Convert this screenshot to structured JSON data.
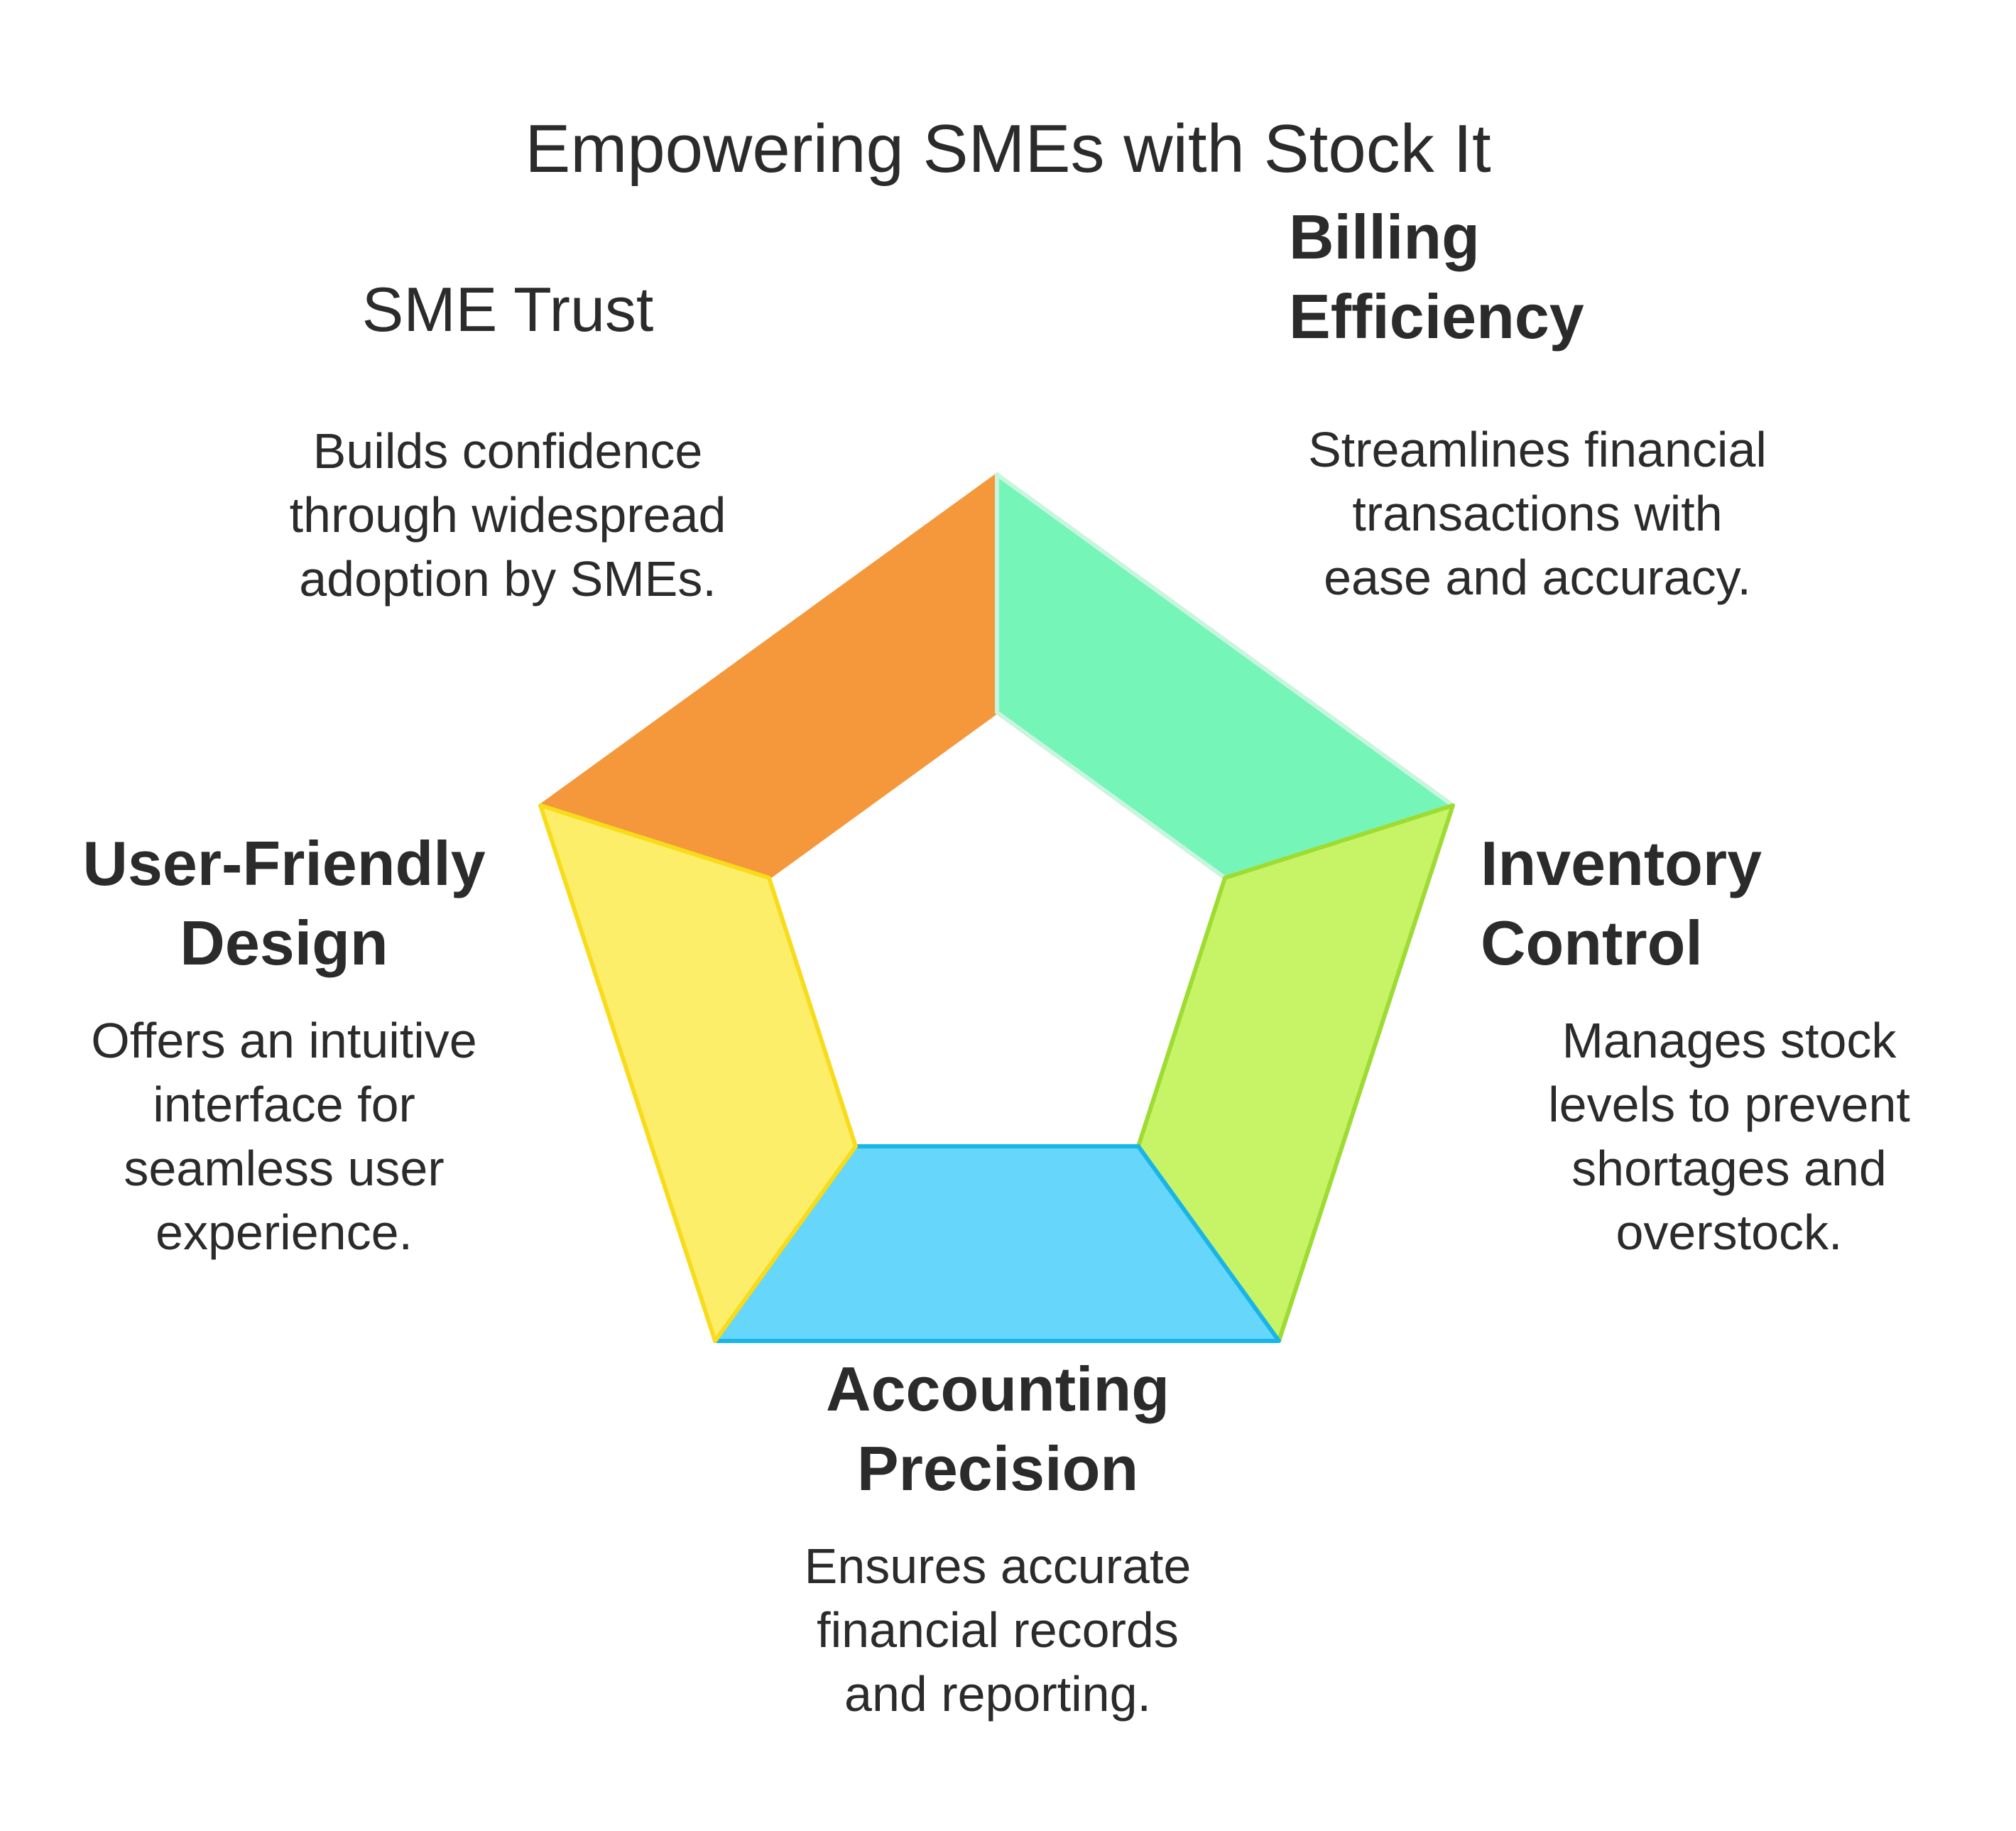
{
  "title": "Empowering SMEs with Stock It",
  "colors": {
    "sme_trust_fill": "#f5973b",
    "billing_fill": "#75f5b8",
    "billing_stroke": "#c8f5dd",
    "inventory_fill": "#c7f466",
    "inventory_stroke": "#9edb33",
    "accounting_fill": "#66d7fb",
    "accounting_stroke": "#1ab5e8",
    "user_friendly_fill": "#fdee6a",
    "user_friendly_stroke": "#f8dc1c",
    "text": "#2b2b2b"
  },
  "segments": {
    "sme_trust": {
      "heading": "SME Trust",
      "description": "Builds confidence through widespread adoption by SMEs."
    },
    "billing": {
      "heading": "Billing\nEfficiency",
      "description": "Streamlines financial transactions with ease and accuracy."
    },
    "inventory": {
      "heading": "Inventory\nControl",
      "description": "Manages stock levels to prevent shortages and overstock."
    },
    "accounting": {
      "heading": "Accounting\nPrecision",
      "description": "Ensures accurate financial records and reporting."
    },
    "user_friendly": {
      "heading": "User-Friendly\nDesign",
      "description": "Offers an intuitive interface for seamless user experience."
    }
  }
}
